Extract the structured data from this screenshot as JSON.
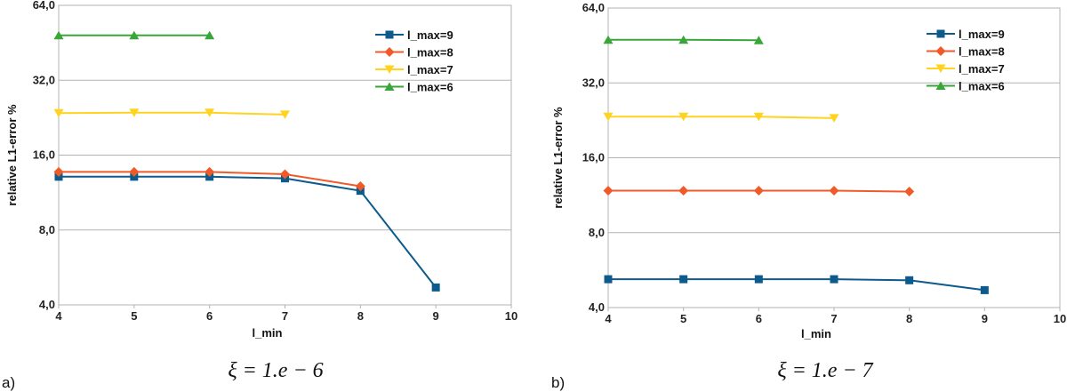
{
  "chart_data": [
    {
      "type": "line",
      "panel_label": "a)",
      "caption": "ξ = 1.e − 6",
      "xlabel": "l_min",
      "ylabel": "relative L1-error %",
      "y_scale": "log2",
      "x_ticks": [
        "4",
        "5",
        "6",
        "7",
        "8",
        "9",
        "10"
      ],
      "y_ticks": [
        "4,0",
        "8,0",
        "16,0",
        "32,0",
        "64,0"
      ],
      "xlim": [
        4,
        10
      ],
      "ylim": [
        4,
        64
      ],
      "grid": "horizontal",
      "legend_position": "top-right",
      "series": [
        {
          "name": "l_max=9",
          "color": "#0d5a8c",
          "marker": "square",
          "x": [
            4,
            5,
            6,
            7,
            8,
            9
          ],
          "y": [
            13.1,
            13.1,
            13.1,
            12.9,
            11.5,
            4.7
          ]
        },
        {
          "name": "l_max=8",
          "color": "#f05a28",
          "marker": "diamond",
          "x": [
            4,
            5,
            6,
            7,
            8
          ],
          "y": [
            13.7,
            13.7,
            13.7,
            13.4,
            12.0
          ]
        },
        {
          "name": "l_max=7",
          "color": "#ffd320",
          "marker": "triangle-down",
          "x": [
            4,
            5,
            6,
            7
          ],
          "y": [
            23.6,
            23.7,
            23.7,
            23.3
          ]
        },
        {
          "name": "l_max=6",
          "color": "#3aa63a",
          "marker": "triangle-up",
          "x": [
            4,
            5,
            6
          ],
          "y": [
            48.5,
            48.5,
            48.5
          ]
        }
      ]
    },
    {
      "type": "line",
      "panel_label": "b)",
      "caption": "ξ = 1.e − 7",
      "xlabel": "l_min",
      "ylabel": "relative L1-error %",
      "y_scale": "log2",
      "x_ticks": [
        "4",
        "5",
        "6",
        "7",
        "8",
        "9",
        "10"
      ],
      "y_ticks": [
        "4,0",
        "8,0",
        "16,0",
        "32,0",
        "64,0"
      ],
      "xlim": [
        4,
        10
      ],
      "ylim": [
        4,
        64
      ],
      "grid": "horizontal",
      "legend_position": "top-right",
      "series": [
        {
          "name": "l_max=9",
          "color": "#0d5a8c",
          "marker": "square",
          "x": [
            4,
            5,
            6,
            7,
            8,
            9
          ],
          "y": [
            5.2,
            5.2,
            5.2,
            5.2,
            5.15,
            4.7
          ]
        },
        {
          "name": "l_max=8",
          "color": "#f05a28",
          "marker": "diamond",
          "x": [
            4,
            5,
            6,
            7,
            8
          ],
          "y": [
            11.8,
            11.8,
            11.8,
            11.8,
            11.7
          ]
        },
        {
          "name": "l_max=7",
          "color": "#ffd320",
          "marker": "triangle-down",
          "x": [
            4,
            5,
            6,
            7
          ],
          "y": [
            23.4,
            23.4,
            23.4,
            23.1
          ]
        },
        {
          "name": "l_max=6",
          "color": "#3aa63a",
          "marker": "triangle-up",
          "x": [
            4,
            5,
            6
          ],
          "y": [
            47.7,
            47.7,
            47.5
          ]
        }
      ]
    }
  ]
}
